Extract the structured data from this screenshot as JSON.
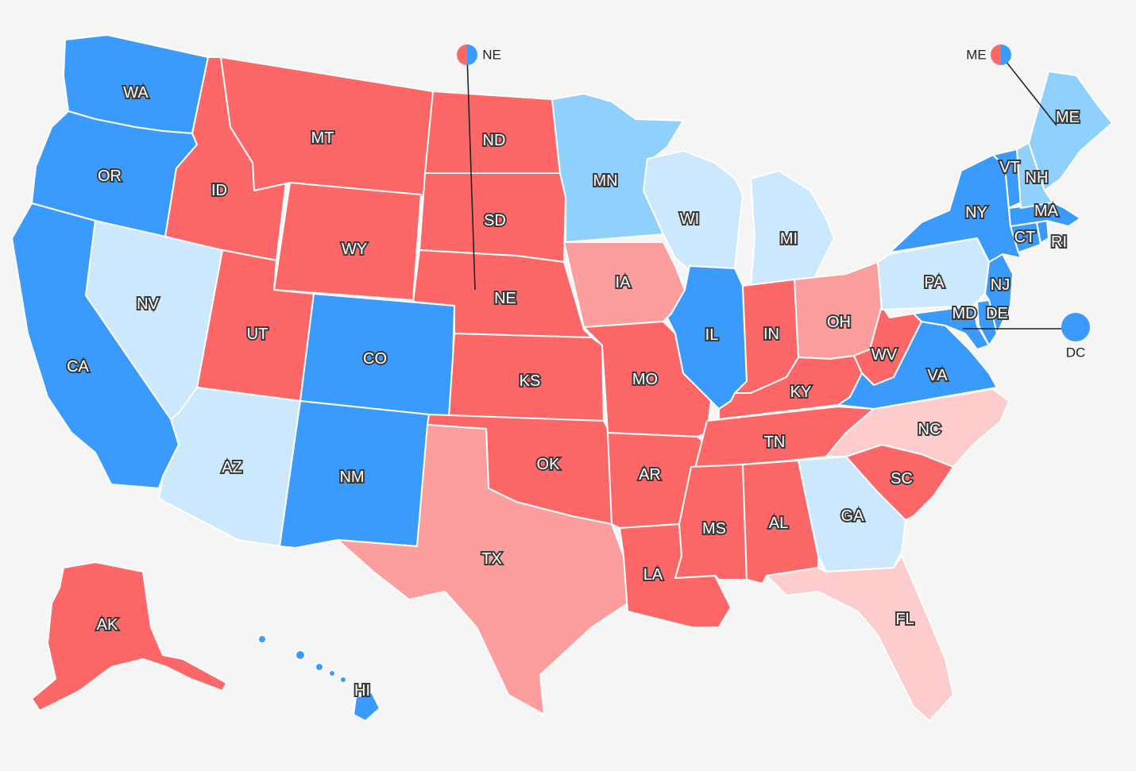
{
  "colors": {
    "safe_dem": "#3a9bfd",
    "likely_dem": "#8fd0fd",
    "lean_dem": "#cce8fd",
    "safe_rep": "#fd6767",
    "likely_rep": "#fd9e9e",
    "lean_rep": "#fdcccc",
    "background": "#f5f5f5"
  },
  "states": {
    "WA": {
      "label": "WA",
      "rating": "safe_dem"
    },
    "OR": {
      "label": "OR",
      "rating": "safe_dem"
    },
    "CA": {
      "label": "CA",
      "rating": "safe_dem"
    },
    "NV": {
      "label": "NV",
      "rating": "lean_dem"
    },
    "ID": {
      "label": "ID",
      "rating": "safe_rep"
    },
    "MT": {
      "label": "MT",
      "rating": "safe_rep"
    },
    "WY": {
      "label": "WY",
      "rating": "safe_rep"
    },
    "UT": {
      "label": "UT",
      "rating": "safe_rep"
    },
    "AZ": {
      "label": "AZ",
      "rating": "lean_dem"
    },
    "CO": {
      "label": "CO",
      "rating": "safe_dem"
    },
    "NM": {
      "label": "NM",
      "rating": "safe_dem"
    },
    "ND": {
      "label": "ND",
      "rating": "safe_rep"
    },
    "SD": {
      "label": "SD",
      "rating": "safe_rep"
    },
    "NE": {
      "label": "NE",
      "rating": "safe_rep"
    },
    "KS": {
      "label": "KS",
      "rating": "safe_rep"
    },
    "OK": {
      "label": "OK",
      "rating": "safe_rep"
    },
    "TX": {
      "label": "TX",
      "rating": "likely_rep"
    },
    "MN": {
      "label": "MN",
      "rating": "likely_dem"
    },
    "IA": {
      "label": "IA",
      "rating": "likely_rep"
    },
    "MO": {
      "label": "MO",
      "rating": "safe_rep"
    },
    "AR": {
      "label": "AR",
      "rating": "safe_rep"
    },
    "LA": {
      "label": "LA",
      "rating": "safe_rep"
    },
    "WI": {
      "label": "WI",
      "rating": "lean_dem"
    },
    "IL": {
      "label": "IL",
      "rating": "safe_dem"
    },
    "MI": {
      "label": "MI",
      "rating": "lean_dem"
    },
    "IN": {
      "label": "IN",
      "rating": "safe_rep"
    },
    "OH": {
      "label": "OH",
      "rating": "likely_rep"
    },
    "KY": {
      "label": "KY",
      "rating": "safe_rep"
    },
    "TN": {
      "label": "TN",
      "rating": "safe_rep"
    },
    "MS": {
      "label": "MS",
      "rating": "safe_rep"
    },
    "AL": {
      "label": "AL",
      "rating": "safe_rep"
    },
    "GA": {
      "label": "GA",
      "rating": "lean_dem"
    },
    "FL": {
      "label": "FL",
      "rating": "lean_rep"
    },
    "SC": {
      "label": "SC",
      "rating": "safe_rep"
    },
    "NC": {
      "label": "NC",
      "rating": "lean_rep"
    },
    "VA": {
      "label": "VA",
      "rating": "safe_dem"
    },
    "WV": {
      "label": "WV",
      "rating": "safe_rep"
    },
    "PA": {
      "label": "PA",
      "rating": "lean_dem"
    },
    "NY": {
      "label": "NY",
      "rating": "safe_dem"
    },
    "VT": {
      "label": "VT",
      "rating": "safe_dem"
    },
    "NH": {
      "label": "NH",
      "rating": "likely_dem"
    },
    "ME": {
      "label": "ME",
      "rating": "likely_dem"
    },
    "MA": {
      "label": "MA",
      "rating": "safe_dem"
    },
    "RI": {
      "label": "RI",
      "rating": "safe_dem"
    },
    "CT": {
      "label": "CT",
      "rating": "safe_dem"
    },
    "NJ": {
      "label": "NJ",
      "rating": "safe_dem"
    },
    "DE": {
      "label": "DE",
      "rating": "safe_dem"
    },
    "MD": {
      "label": "MD",
      "rating": "safe_dem"
    },
    "AK": {
      "label": "AK",
      "rating": "safe_rep"
    },
    "HI": {
      "label": "HI",
      "rating": "safe_dem"
    }
  },
  "callouts": {
    "ne_district": {
      "label": "NE",
      "split": [
        "safe_rep",
        "safe_dem"
      ]
    },
    "me_district": {
      "label": "ME",
      "split": [
        "safe_rep",
        "safe_dem"
      ]
    },
    "dc": {
      "label": "DC",
      "rating": "safe_dem"
    }
  }
}
